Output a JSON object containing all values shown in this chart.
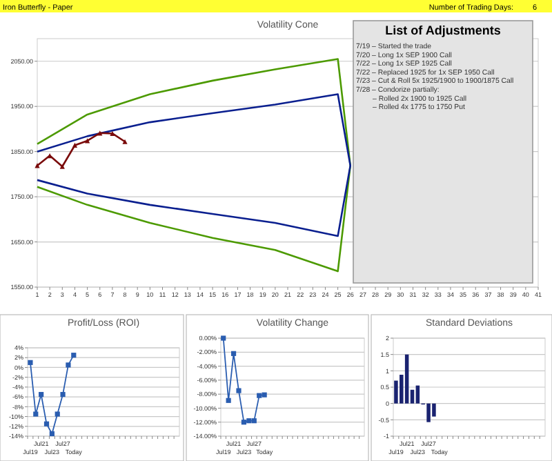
{
  "chart_data": [
    {
      "type": "other",
      "annotations": [
        "Iron Butterfly - Paper",
        "Number of Trading Days:",
        "6"
      ]
    },
    {
      "type": "line",
      "title": "Volatility Cone",
      "xlim": [
        1,
        41
      ],
      "xticks": [
        1,
        2,
        3,
        4,
        5,
        6,
        7,
        8,
        9,
        10,
        11,
        12,
        13,
        14,
        15,
        16,
        17,
        18,
        19,
        20,
        21,
        22,
        23,
        24,
        25,
        26,
        27,
        28,
        29,
        30,
        31,
        32,
        33,
        34,
        35,
        36,
        37,
        38,
        39,
        40,
        41
      ],
      "ylim": [
        1550,
        2100
      ],
      "yticks": [
        {
          "value": 1550,
          "label": "1550.00"
        },
        {
          "value": 1650,
          "label": "1650.00"
        },
        {
          "value": 1750,
          "label": "1750.00"
        },
        {
          "value": 1850,
          "label": "1850.00"
        },
        {
          "value": 1950,
          "label": "1950.00"
        },
        {
          "value": 2050,
          "label": "2050.00"
        }
      ],
      "grid": "y",
      "series": [
        {
          "color": "#4c9a00",
          "marker": "none",
          "x": [
            1,
            5,
            10,
            15,
            20,
            25,
            26,
            25,
            20,
            15,
            10,
            5,
            1
          ],
          "values": [
            1867,
            1932,
            1977,
            2007,
            2032,
            2055,
            1819,
            1585,
            1632,
            1659,
            1692,
            1732,
            1772
          ]
        },
        {
          "color": "#0a1f8f",
          "marker": "none",
          "x": [
            1,
            5,
            10,
            15,
            20,
            25,
            26,
            25,
            20,
            15,
            10,
            5,
            1
          ],
          "values": [
            1850,
            1884,
            1915,
            1935,
            1954,
            1977,
            1819,
            1663,
            1692,
            1712,
            1732,
            1757,
            1787
          ]
        },
        {
          "color": "#7a0a0a",
          "marker": "triangle",
          "x": [
            1,
            2,
            3,
            4,
            5,
            6,
            7,
            8
          ],
          "values": [
            1819,
            1841,
            1817,
            1864,
            1874,
            1891,
            1890,
            1872
          ]
        }
      ]
    },
    {
      "type": "other",
      "title": "List of Adjustments",
      "annotations": [
        "7/19 – Started the trade",
        "7/20 – Long 1x SEP 1900 Call",
        "7/22 – Long 1x SEP 1925 Call",
        "7/22 – Replaced 1925 for 1x SEP 1950 Call",
        "7/23 – Cut & Roll 5x 1925/1900 to 1900/1875 Call",
        "7/28 – Condorize partially:",
        "– Rolled 2x 1900 to 1925 Call",
        "– Rolled 4x 1775 to 1750 Put"
      ]
    },
    {
      "type": "line",
      "title": "Profit/Loss (ROI)",
      "categories": [
        "Jul19",
        null,
        "Jul21",
        null,
        "Jul23",
        null,
        "Jul27",
        null,
        "Today",
        null,
        null,
        null,
        null,
        null,
        null,
        null,
        null,
        null,
        null,
        null,
        null,
        null,
        null,
        null,
        null,
        null,
        null,
        null
      ],
      "values": [
        1,
        -9.5,
        -5.5,
        -11.5,
        -13.5,
        -9.5,
        -5.5,
        0.5,
        2.5,
        null,
        null,
        null,
        null,
        null,
        null,
        null,
        null,
        null,
        null,
        null,
        null,
        null,
        null,
        null,
        null,
        null,
        null,
        null
      ],
      "color": "#2a5db0",
      "marker": "square",
      "ylim": [
        -14,
        4
      ],
      "yticks": [
        {
          "value": 4,
          "label": "4%"
        },
        {
          "value": 2,
          "label": "2%"
        },
        {
          "value": 0,
          "label": "0%"
        },
        {
          "value": -2,
          "label": "-2%"
        },
        {
          "value": -4,
          "label": "-4%"
        },
        {
          "value": -6,
          "label": "-6%"
        },
        {
          "value": -8,
          "label": "-8%"
        },
        {
          "value": -10,
          "label": "-10%"
        },
        {
          "value": -12,
          "label": "-12%"
        },
        {
          "value": -14,
          "label": "-14%"
        }
      ],
      "grid": "y"
    },
    {
      "type": "line",
      "title": "Volatility Change",
      "categories": [
        "Jul19",
        null,
        "Jul21",
        null,
        "Jul23",
        null,
        "Jul27",
        null,
        "Today",
        null,
        null,
        null,
        null,
        null,
        null,
        null,
        null,
        null,
        null,
        null,
        null,
        null,
        null,
        null,
        null,
        null,
        null,
        null
      ],
      "values": [
        0,
        -8.9,
        -2.2,
        -7.5,
        -12,
        -11.8,
        -11.8,
        -8.2,
        -8.1,
        null,
        null,
        null,
        null,
        null,
        null,
        null,
        null,
        null,
        null,
        null,
        null,
        null,
        null,
        null,
        null,
        null,
        null,
        null
      ],
      "color": "#2a5db0",
      "marker": "square",
      "ylim": [
        -14,
        0
      ],
      "yticks": [
        {
          "value": 0,
          "label": "0.00%"
        },
        {
          "value": -2,
          "label": "-2.00%"
        },
        {
          "value": -4,
          "label": "-4.00%"
        },
        {
          "value": -6,
          "label": "-6.00%"
        },
        {
          "value": -8,
          "label": "-8.00%"
        },
        {
          "value": -10,
          "label": "-10.00%"
        },
        {
          "value": -12,
          "label": "-12.00%"
        },
        {
          "value": -14,
          "label": "-14.00%"
        }
      ],
      "grid": "y"
    },
    {
      "type": "bar",
      "title": "Standard Deviations",
      "categories": [
        "Jul19",
        null,
        "Jul21",
        null,
        "Jul23",
        null,
        "Jul27",
        null,
        "Today",
        null,
        null,
        null,
        null,
        null,
        null,
        null,
        null,
        null,
        null,
        null,
        null,
        null,
        null,
        null,
        null,
        null,
        null,
        null
      ],
      "values": [
        0.7,
        0.88,
        1.5,
        0.42,
        0.55,
        -0.03,
        -0.57,
        -0.4,
        null,
        null,
        null,
        null,
        null,
        null,
        null,
        null,
        null,
        null,
        null,
        null,
        null,
        null,
        null,
        null,
        null,
        null,
        null,
        null
      ],
      "color": "#1a2370",
      "ylim": [
        -1,
        2
      ],
      "yticks": [
        -1,
        -0.5,
        0,
        0.5,
        1,
        1.5,
        2
      ],
      "grid": "y"
    }
  ]
}
